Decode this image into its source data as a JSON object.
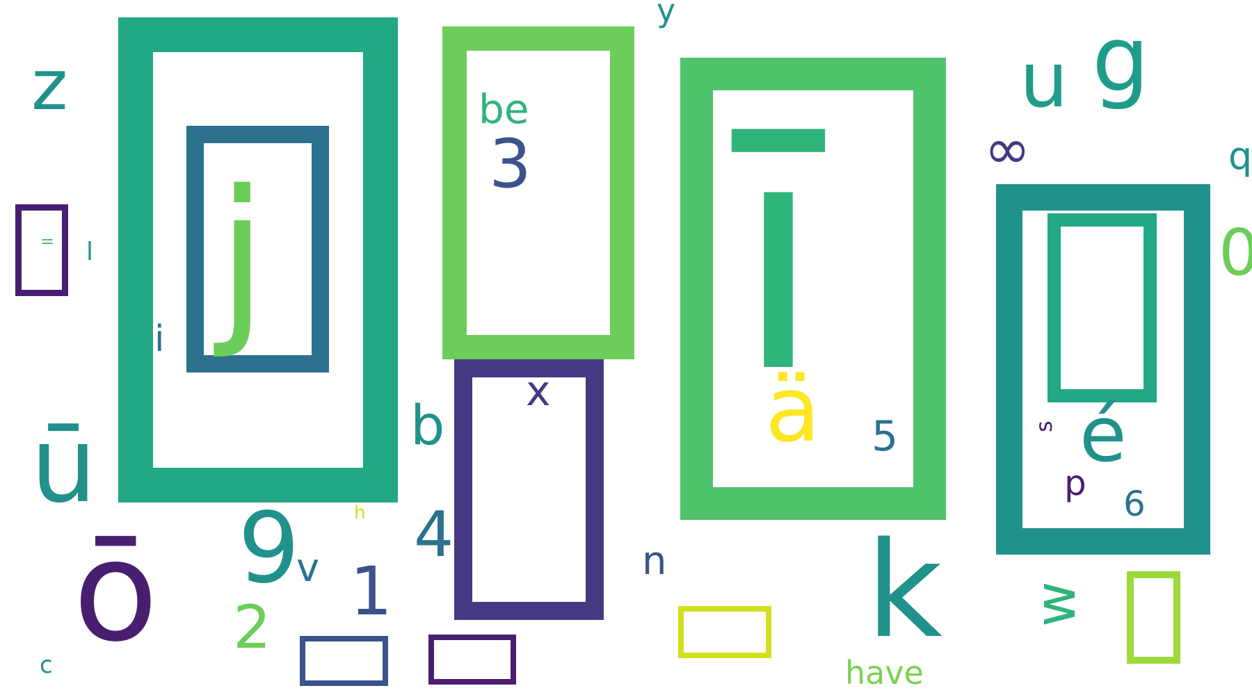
{
  "words": {
    "j": "j",
    "i_macron": "ī",
    "be": "be",
    "three": "3",
    "z": "z",
    "y": "y",
    "u": "u",
    "g": "g",
    "q": "q",
    "infinity": "∞",
    "zero": "0",
    "equals": "=",
    "l": "l",
    "i": "i",
    "x": "x",
    "a_umlaut": "ä",
    "five": "5",
    "b": "b",
    "s": "s",
    "e_acute": "é",
    "u_macron": "ū",
    "p": "p",
    "six": "6",
    "h": "h",
    "nine": "9",
    "four": "4",
    "o_macron": "ō",
    "v": "v",
    "one": "1",
    "n": "n",
    "k": "k",
    "w": "w",
    "two": "2",
    "c": "c",
    "have": "have"
  },
  "colors": {
    "teal_green": "#22a884",
    "steel_blue": "#2c728e",
    "lime_green": "#6ccd5a",
    "light_green": "#4ec36b",
    "indigo": "#443983",
    "teal": "#21918c",
    "dark_purple": "#481f70",
    "slate_blue": "#3b528b",
    "yellow": "#fde725",
    "chartreuse": "#d0e11c",
    "yellow_green": "#9dd93b",
    "spring_green": "#7ad151",
    "green_teal": "#2fb47c",
    "cyan_teal": "#1e9c89"
  }
}
